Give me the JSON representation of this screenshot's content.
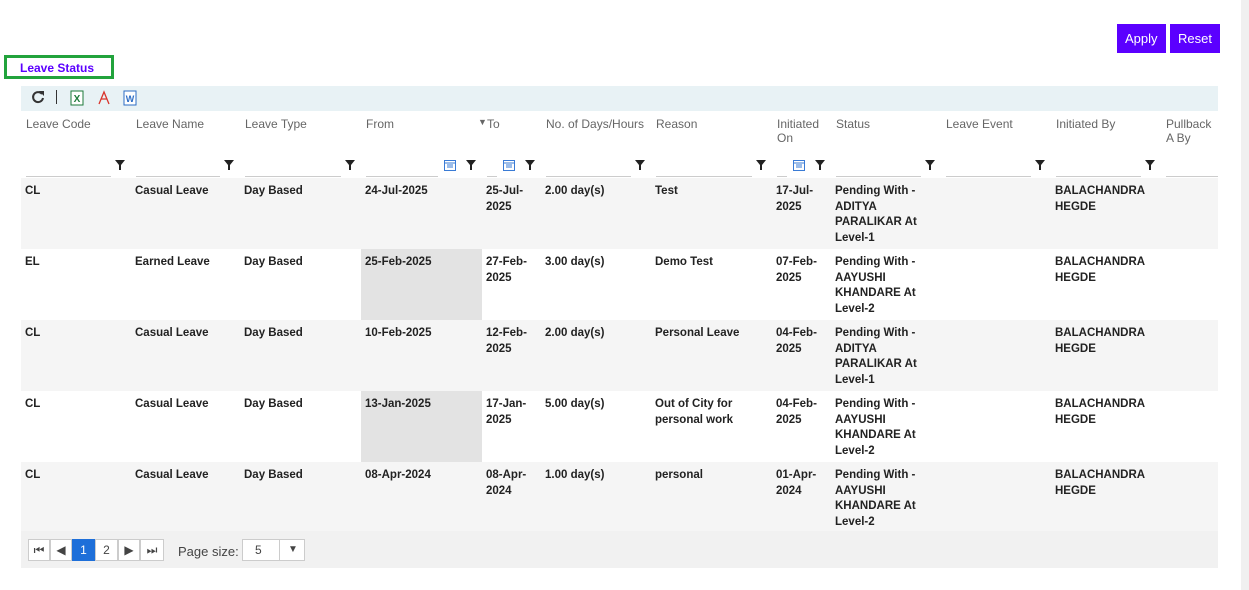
{
  "actions": {
    "apply": "Apply",
    "reset": "Reset"
  },
  "tab": {
    "title": "Leave Status"
  },
  "table": {
    "headers": [
      "Leave Code",
      "Leave Name",
      "Leave Type",
      "From",
      "To",
      "No. of Days/Hours",
      "Reason",
      "Initiated On",
      "Status",
      "Leave Event",
      "Initiated By",
      "Pullback A By"
    ],
    "rows": [
      [
        "CL",
        "Casual Leave",
        "Day Based",
        "24-Jul-2025",
        "25-Jul-2025",
        "2.00 day(s)",
        "Test",
        "17-Jul-2025",
        "Pending With - ADITYA PARALIKAR At Level-1",
        "",
        "BALACHANDRA HEGDE",
        ""
      ],
      [
        "EL",
        "Earned Leave",
        "Day Based",
        "25-Feb-2025",
        "27-Feb-2025",
        "3.00 day(s)",
        "Demo Test",
        "07-Feb-2025",
        "Pending With - AAYUSHI KHANDARE At Level-2",
        "",
        "BALACHANDRA HEGDE",
        ""
      ],
      [
        "CL",
        "Casual Leave",
        "Day Based",
        "10-Feb-2025",
        "12-Feb-2025",
        "2.00 day(s)",
        "Personal Leave",
        "04-Feb-2025",
        "Pending With - ADITYA PARALIKAR At Level-1",
        "",
        "BALACHANDRA HEGDE",
        ""
      ],
      [
        "CL",
        "Casual Leave",
        "Day Based",
        "13-Jan-2025",
        "17-Jan-2025",
        "5.00 day(s)",
        "Out of City for personal work",
        "04-Feb-2025",
        "Pending With - AAYUSHI KHANDARE At Level-2",
        "",
        "BALACHANDRA HEGDE",
        ""
      ],
      [
        "CL",
        "Casual Leave",
        "Day Based",
        "08-Apr-2024",
        "08-Apr-2024",
        "1.00 day(s)",
        "personal",
        "01-Apr-2024",
        "Pending With - AAYUSHI KHANDARE At Level-2",
        "",
        "BALACHANDRA HEGDE",
        ""
      ]
    ]
  },
  "pager": {
    "pages": [
      "1",
      "2"
    ],
    "page_size_label": "Page size:",
    "page_size": "5"
  }
}
